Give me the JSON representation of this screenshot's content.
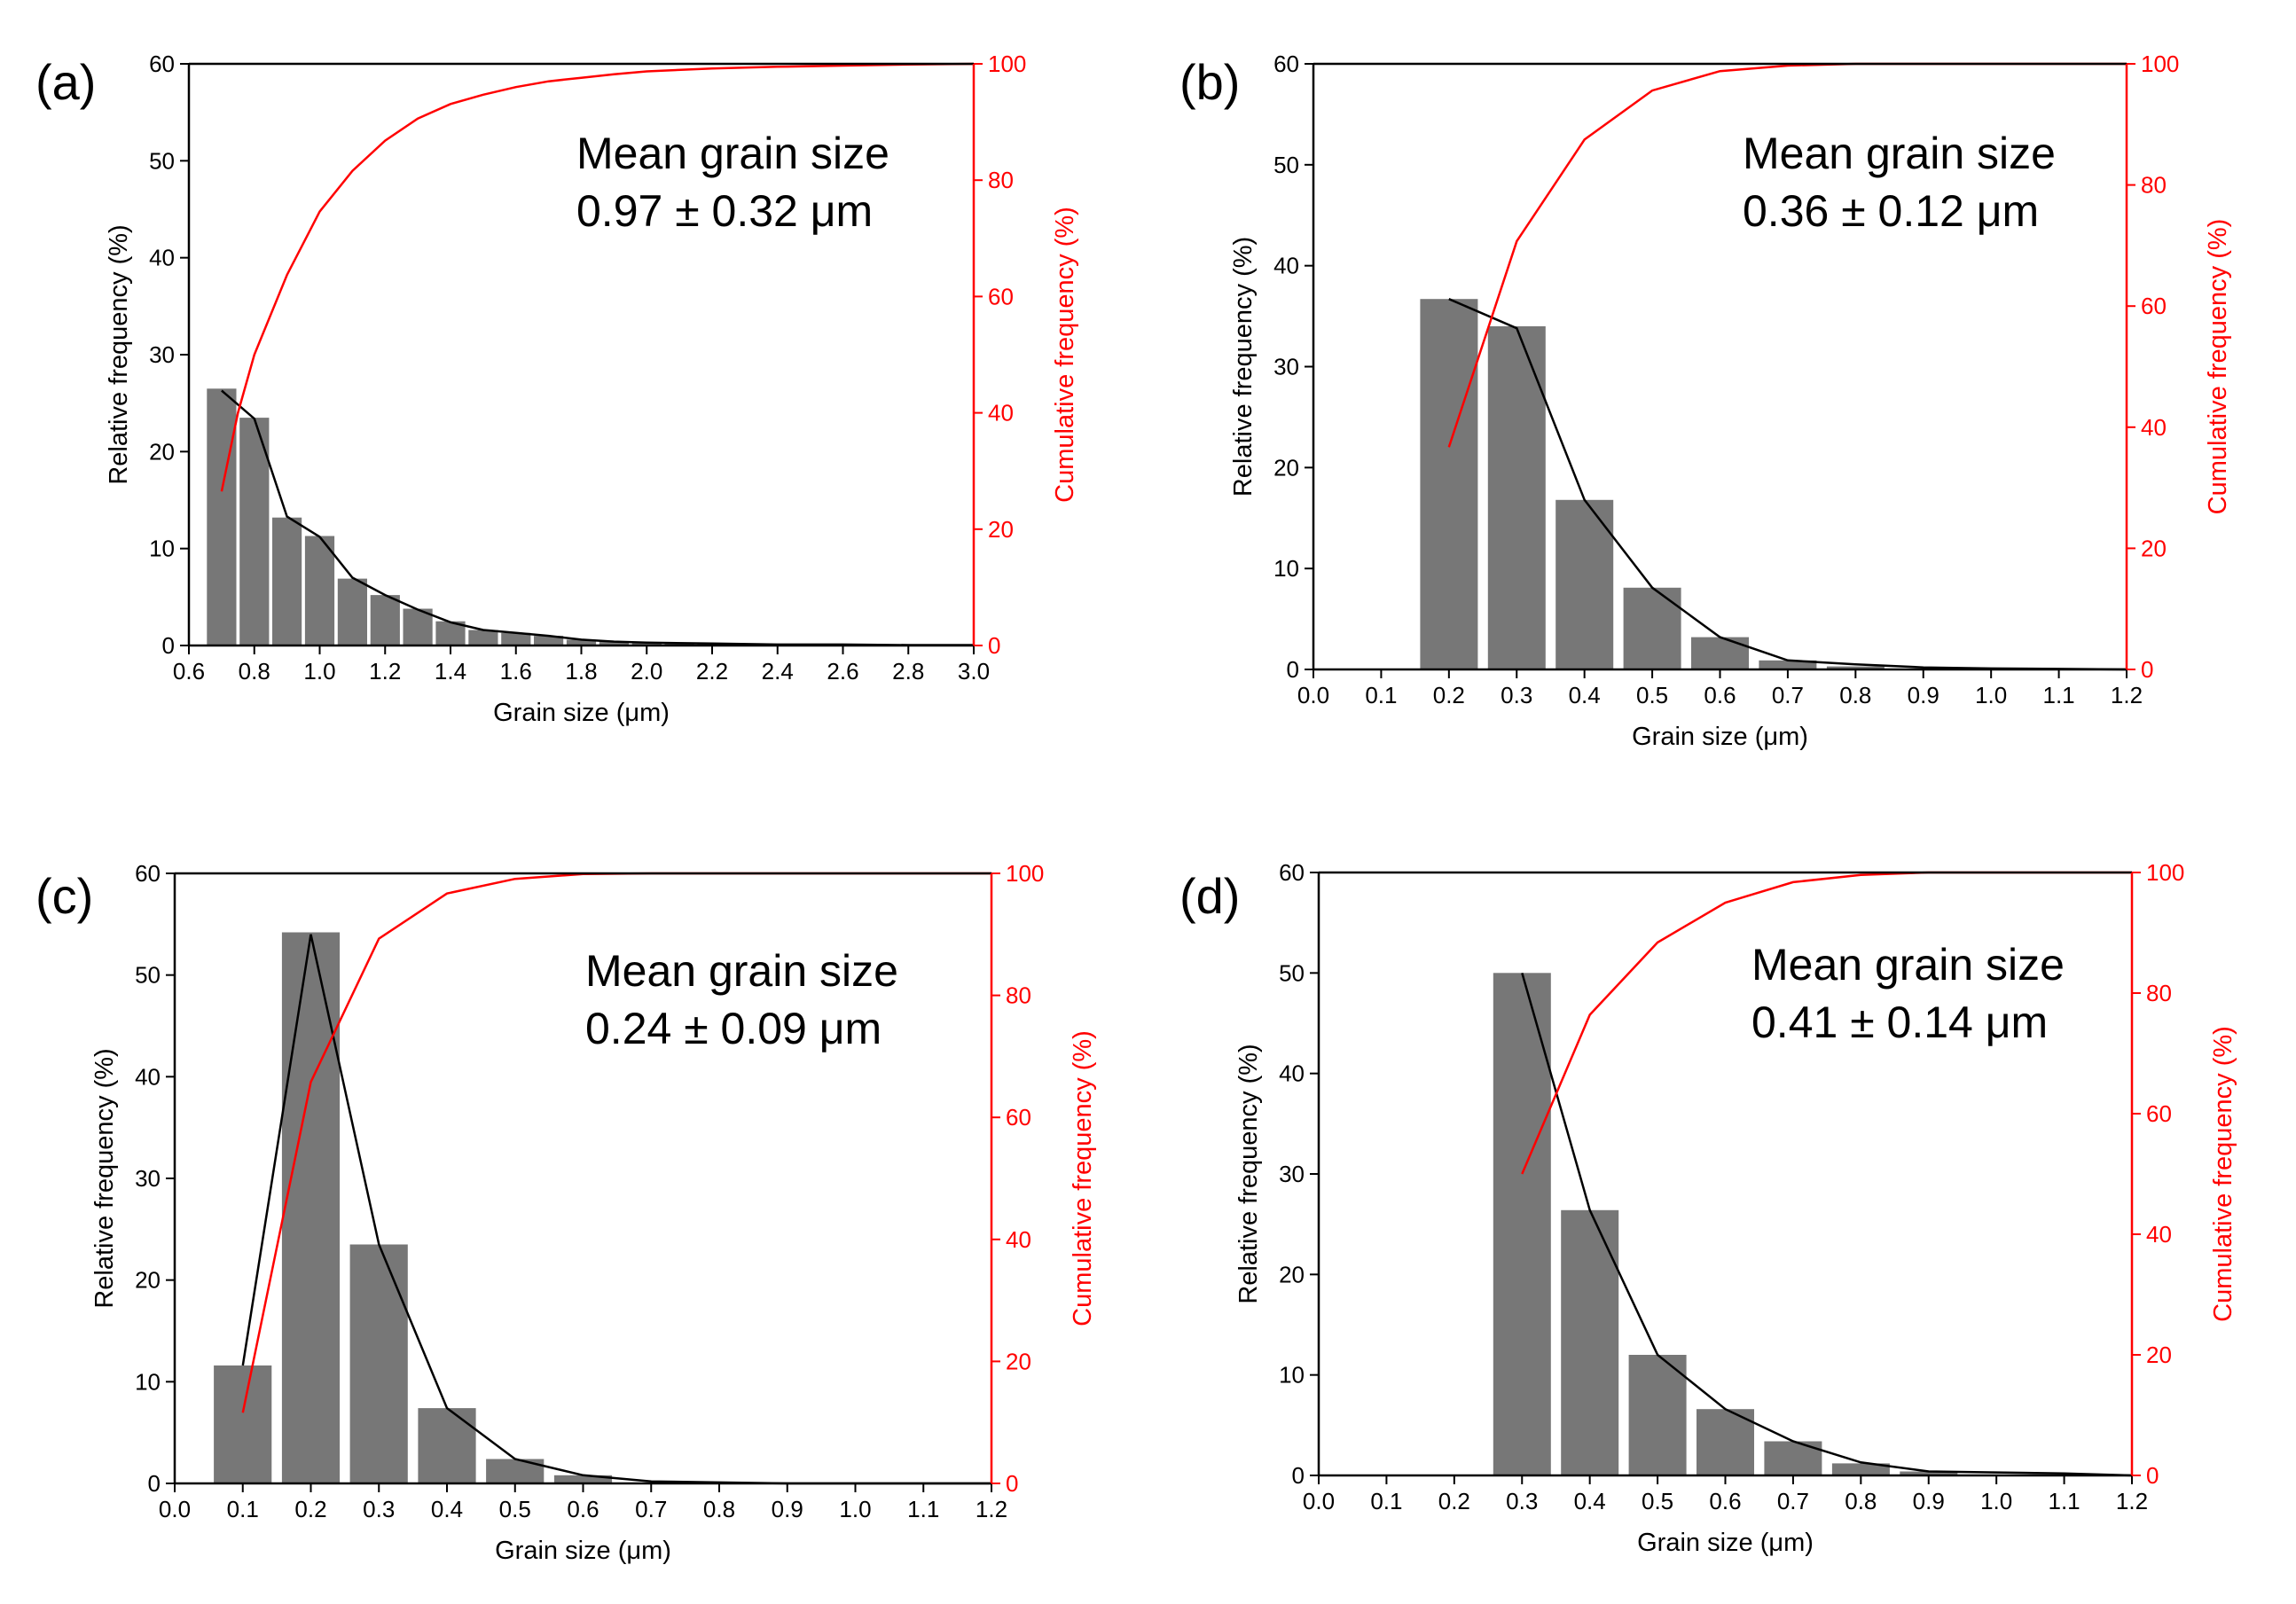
{
  "colors": {
    "bar": "#777777",
    "frequency_line": "#000000",
    "cumulative_line": "#ff0000",
    "axis": "#000000"
  },
  "chart_data": [
    {
      "panel_label": "(a)",
      "type": "bar",
      "annotation_title": "Mean grain size",
      "annotation_value": "0.97 ± 0.32 μm",
      "xlabel": "Grain size (μm)",
      "ylabel": "Relative frequency (%)",
      "ylabel_right": "Cumulative frequency (%)",
      "xlim": [
        0.6,
        3.0
      ],
      "ylim": [
        0,
        60
      ],
      "ylim_right": [
        0,
        100
      ],
      "x_ticks": [
        "0.6",
        "0.8",
        "1.0",
        "1.2",
        "1.4",
        "1.6",
        "1.8",
        "2.0",
        "2.2",
        "2.4",
        "2.6",
        "2.8",
        "3.0"
      ],
      "y_ticks": [
        "0",
        "10",
        "20",
        "30",
        "40",
        "50",
        "60"
      ],
      "y_ticks_right": [
        "0",
        "20",
        "40",
        "60",
        "80",
        "100"
      ],
      "bar_width": 0.09,
      "bars_x": [
        0.7,
        0.8,
        0.9,
        1.0,
        1.1,
        1.2,
        1.3,
        1.4,
        1.5,
        1.6,
        1.7,
        1.8,
        1.9,
        2.0,
        2.1,
        2.2,
        2.3,
        2.4,
        2.5,
        2.6,
        2.7,
        2.8,
        2.9
      ],
      "bars_y": [
        26.5,
        23.5,
        13.2,
        11.3,
        6.9,
        5.2,
        3.8,
        2.5,
        1.6,
        1.3,
        1.0,
        0.6,
        0.4,
        0.3,
        0.25,
        0.2,
        0.15,
        0.12,
        0.1,
        0.08,
        0.06,
        0.05,
        0.05
      ],
      "freq_line_x": [
        0.7,
        0.8,
        0.9,
        1.0,
        1.1,
        1.2,
        1.3,
        1.4,
        1.5,
        1.6,
        1.7,
        1.8,
        1.9,
        2.0,
        2.2,
        2.4,
        2.6,
        2.8,
        3.0
      ],
      "freq_line_y": [
        26.3,
        23.4,
        13.3,
        11.2,
        7.0,
        5.2,
        3.7,
        2.4,
        1.6,
        1.3,
        1.0,
        0.6,
        0.4,
        0.3,
        0.2,
        0.1,
        0.1,
        0.05,
        0.05
      ],
      "cumulative_x": [
        0.7,
        0.75,
        0.8,
        0.9,
        1.0,
        1.1,
        1.2,
        1.3,
        1.4,
        1.5,
        1.6,
        1.7,
        1.8,
        1.9,
        2.0,
        2.2,
        2.4,
        2.6,
        2.8,
        3.0
      ],
      "cumulative_y": [
        26.5,
        40,
        50,
        63.7,
        74.6,
        81.6,
        86.8,
        90.6,
        93.1,
        94.7,
        96.0,
        97.0,
        97.6,
        98.2,
        98.7,
        99.2,
        99.5,
        99.7,
        99.9,
        100
      ]
    },
    {
      "panel_label": "(b)",
      "type": "bar",
      "annotation_title": "Mean grain size",
      "annotation_value": "0.36 ± 0.12 μm",
      "xlabel": "Grain size (μm)",
      "ylabel": "Relative frequency (%)",
      "ylabel_right": "Cumulative frequency (%)",
      "xlim": [
        0.0,
        1.2
      ],
      "ylim": [
        0,
        60
      ],
      "ylim_right": [
        0,
        100
      ],
      "x_ticks": [
        "0.0",
        "0.1",
        "0.2",
        "0.3",
        "0.4",
        "0.5",
        "0.6",
        "0.7",
        "0.8",
        "0.9",
        "1.0",
        "1.1",
        "1.2"
      ],
      "y_ticks": [
        "0",
        "10",
        "20",
        "30",
        "40",
        "50",
        "60"
      ],
      "y_ticks_right": [
        "0",
        "20",
        "40",
        "60",
        "80",
        "100"
      ],
      "bar_width": 0.085,
      "bars_x": [
        0.2,
        0.3,
        0.4,
        0.5,
        0.6,
        0.7,
        0.8
      ],
      "bars_y": [
        36.7,
        34.0,
        16.8,
        8.1,
        3.2,
        0.9,
        0.3
      ],
      "freq_line_x": [
        0.2,
        0.3,
        0.4,
        0.5,
        0.6,
        0.7,
        0.8,
        0.9,
        1.0,
        1.1,
        1.2
      ],
      "freq_line_y": [
        36.7,
        33.8,
        16.8,
        8.1,
        3.2,
        0.9,
        0.5,
        0.2,
        0.1,
        0.05,
        0.0
      ],
      "cumulative_x": [
        0.2,
        0.3,
        0.4,
        0.5,
        0.6,
        0.7,
        0.8,
        0.9,
        1.0,
        1.1,
        1.2
      ],
      "cumulative_y": [
        36.7,
        70.7,
        87.5,
        95.6,
        98.8,
        99.7,
        100,
        100,
        100,
        100,
        100
      ]
    },
    {
      "panel_label": "(c)",
      "type": "bar",
      "annotation_title": "Mean grain size",
      "annotation_value": "0.24 ± 0.09 μm",
      "xlabel": "Grain size (μm)",
      "ylabel": "Relative frequency (%)",
      "ylabel_right": "Cumulative frequency (%)",
      "xlim": [
        0.0,
        1.2
      ],
      "ylim": [
        0,
        60
      ],
      "ylim_right": [
        0,
        100
      ],
      "x_ticks": [
        "0.0",
        "0.1",
        "0.2",
        "0.3",
        "0.4",
        "0.5",
        "0.6",
        "0.7",
        "0.8",
        "0.9",
        "1.0",
        "1.1",
        "1.2"
      ],
      "y_ticks": [
        "0",
        "10",
        "20",
        "30",
        "40",
        "50",
        "60"
      ],
      "y_ticks_right": [
        "0",
        "20",
        "40",
        "60",
        "80",
        "100"
      ],
      "bar_width": 0.085,
      "bars_x": [
        0.1,
        0.2,
        0.3,
        0.4,
        0.5,
        0.6
      ],
      "bars_y": [
        11.6,
        54.2,
        23.5,
        7.4,
        2.4,
        0.8
      ],
      "freq_line_x": [
        0.1,
        0.2,
        0.3,
        0.4,
        0.5,
        0.6,
        0.7,
        0.8,
        0.9,
        1.0,
        1.1,
        1.2
      ],
      "freq_line_y": [
        11.6,
        54.0,
        23.5,
        7.4,
        2.4,
        0.8,
        0.2,
        0.1,
        0.0,
        0.0,
        0.0,
        0.0
      ],
      "cumulative_x": [
        0.1,
        0.2,
        0.3,
        0.4,
        0.5,
        0.6,
        0.7,
        0.8,
        0.9,
        1.0,
        1.1,
        1.2
      ],
      "cumulative_y": [
        11.6,
        65.8,
        89.3,
        96.7,
        99.1,
        99.9,
        100,
        100,
        100,
        100,
        100,
        100
      ]
    },
    {
      "panel_label": "(d)",
      "type": "bar",
      "annotation_title": "Mean grain size",
      "annotation_value": "0.41 ± 0.14 μm",
      "xlabel": "Grain size (μm)",
      "ylabel": "Relative frequency (%)",
      "ylabel_right": "Cumulative frequency (%)",
      "xlim": [
        0.0,
        1.2
      ],
      "ylim": [
        0,
        60
      ],
      "ylim_right": [
        0,
        100
      ],
      "x_ticks": [
        "0.0",
        "0.1",
        "0.2",
        "0.3",
        "0.4",
        "0.5",
        "0.6",
        "0.7",
        "0.8",
        "0.9",
        "1.0",
        "1.1",
        "1.2"
      ],
      "y_ticks": [
        "0",
        "10",
        "20",
        "30",
        "40",
        "50",
        "60"
      ],
      "y_ticks_right": [
        "0",
        "20",
        "40",
        "60",
        "80",
        "100"
      ],
      "bar_width": 0.085,
      "bars_x": [
        0.3,
        0.4,
        0.5,
        0.6,
        0.7,
        0.8,
        0.9
      ],
      "bars_y": [
        50.0,
        26.4,
        12.0,
        6.6,
        3.4,
        1.2,
        0.4
      ],
      "freq_line_x": [
        0.3,
        0.4,
        0.5,
        0.6,
        0.7,
        0.8,
        0.9,
        1.0,
        1.1,
        1.2
      ],
      "freq_line_y": [
        50.0,
        26.4,
        12.0,
        6.6,
        3.4,
        1.3,
        0.4,
        0.3,
        0.2,
        0.0
      ],
      "cumulative_x": [
        0.3,
        0.4,
        0.5,
        0.6,
        0.7,
        0.8,
        0.9,
        1.0,
        1.1,
        1.2
      ],
      "cumulative_y": [
        50.0,
        76.4,
        88.4,
        95.0,
        98.4,
        99.6,
        100,
        100,
        100,
        100
      ]
    }
  ]
}
